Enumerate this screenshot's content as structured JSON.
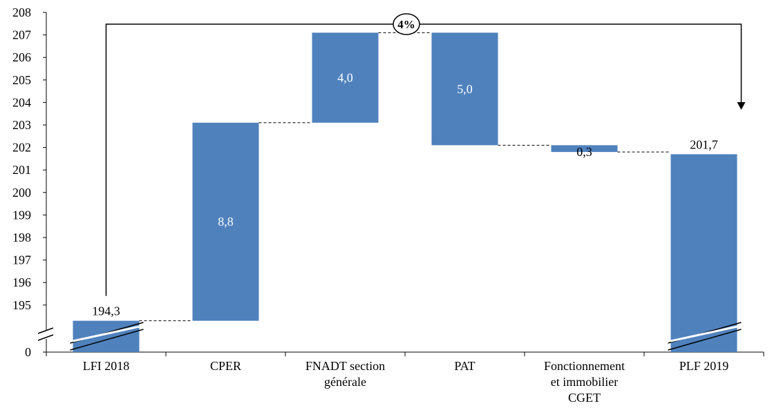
{
  "chart_data": {
    "type": "bar",
    "subtype": "waterfall",
    "categories": [
      [
        "LFI 2018"
      ],
      [
        "CPER"
      ],
      [
        "FNADT section",
        "générale"
      ],
      [
        "PAT"
      ],
      [
        "Fonctionnement",
        "et immobilier",
        "CGET"
      ],
      [
        "PLF 2019"
      ]
    ],
    "bars": [
      {
        "kind": "total",
        "start": 0,
        "end": 194.3,
        "label": "194,3"
      },
      {
        "kind": "delta",
        "start": 194.3,
        "end": 203.1,
        "label": "8,8"
      },
      {
        "kind": "delta",
        "start": 203.1,
        "end": 207.1,
        "label": "4,0"
      },
      {
        "kind": "delta",
        "start": 207.1,
        "end": 202.1,
        "label": "5,0"
      },
      {
        "kind": "delta",
        "start": 202.1,
        "end": 201.8,
        "label": "0,3"
      },
      {
        "kind": "total",
        "start": 0,
        "end": 201.7,
        "label": "201,7"
      }
    ],
    "ylim": [
      194,
      208
    ],
    "y_ticks": [
      195,
      196,
      197,
      198,
      199,
      200,
      201,
      202,
      203,
      204,
      205,
      206,
      207,
      208
    ],
    "y_zero_label": "0",
    "axis_break": true,
    "annotation": {
      "text": "4%",
      "from_category": 0,
      "to_category": 5
    },
    "bar_color": "#4f81bd",
    "title": "",
    "xlabel": "",
    "ylabel": ""
  }
}
